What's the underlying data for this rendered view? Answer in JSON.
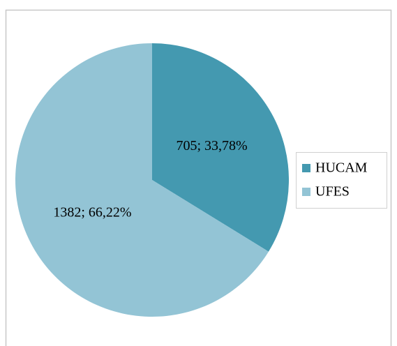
{
  "chart_data": {
    "type": "pie",
    "categories": [
      "HUCAM",
      "UFES"
    ],
    "values": [
      705,
      1382
    ],
    "value_labels": [
      "705; 33,78%",
      "1382; 66,22%"
    ],
    "colors": [
      "#4499b0",
      "#93c4d5"
    ],
    "legend": "right"
  }
}
